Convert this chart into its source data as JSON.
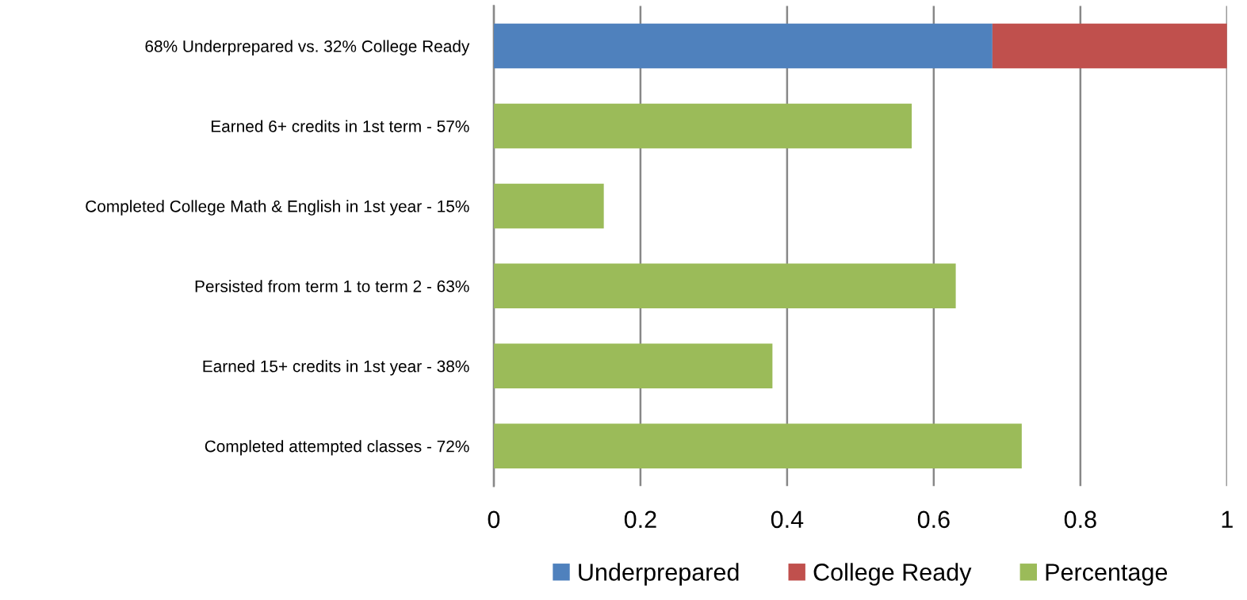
{
  "chart_data": {
    "type": "bar",
    "orientation": "horizontal",
    "stacked": true,
    "categories": [
      "68% Underprepared vs. 32% College Ready",
      "Earned 6+ credits in 1st term - 57%",
      "Completed College Math & English in 1st year - 15%",
      "Persisted from term 1 to term 2 - 63%",
      "Earned 15+ credits in 1st year - 38%",
      "Completed attempted classes - 72%"
    ],
    "series": [
      {
        "name": "Underprepared",
        "color": "#4f81bd",
        "values": [
          0.68,
          null,
          null,
          null,
          null,
          null
        ]
      },
      {
        "name": "College Ready",
        "color": "#c0504d",
        "values": [
          0.32,
          null,
          null,
          null,
          null,
          null
        ]
      },
      {
        "name": "Percentage",
        "color": "#9bbb59",
        "values": [
          null,
          0.57,
          0.15,
          0.63,
          0.38,
          0.72
        ]
      }
    ],
    "xlim": [
      0,
      1
    ],
    "xticks": [
      0,
      0.2,
      0.4,
      0.6,
      0.8,
      1
    ],
    "grid": "x",
    "legend": "bottom"
  }
}
